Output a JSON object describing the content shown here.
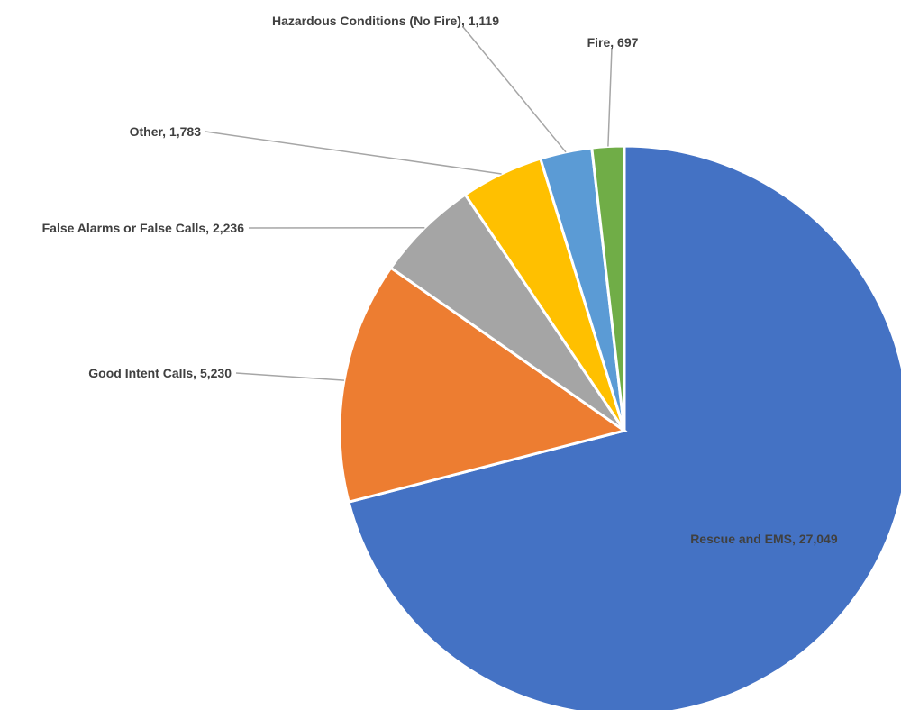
{
  "chart_data": {
    "type": "pie",
    "title": "",
    "start_angle_deg": 0,
    "direction": "clockwise",
    "slices": [
      {
        "label": "Rescue and EMS",
        "value": 27049,
        "value_text": "27,049",
        "color": "#4472c4",
        "label_position": "inside"
      },
      {
        "label": "Good Intent Calls",
        "value": 5230,
        "value_text": "5,230",
        "color": "#ed7d31",
        "label_position": "outside"
      },
      {
        "label": "False Alarms or False Calls",
        "value": 2236,
        "value_text": "2,236",
        "color": "#a5a5a5",
        "label_position": "outside"
      },
      {
        "label": "Other",
        "value": 1783,
        "value_text": "1,783",
        "color": "#ffc000",
        "label_position": "outside"
      },
      {
        "label": "Hazardous Conditions (No Fire)",
        "value": 1119,
        "value_text": "1,119",
        "color": "#5b9bd5",
        "label_position": "outside"
      },
      {
        "label": "Fire",
        "value": 697,
        "value_text": "697",
        "color": "#70ad47",
        "label_position": "outside"
      }
    ]
  }
}
